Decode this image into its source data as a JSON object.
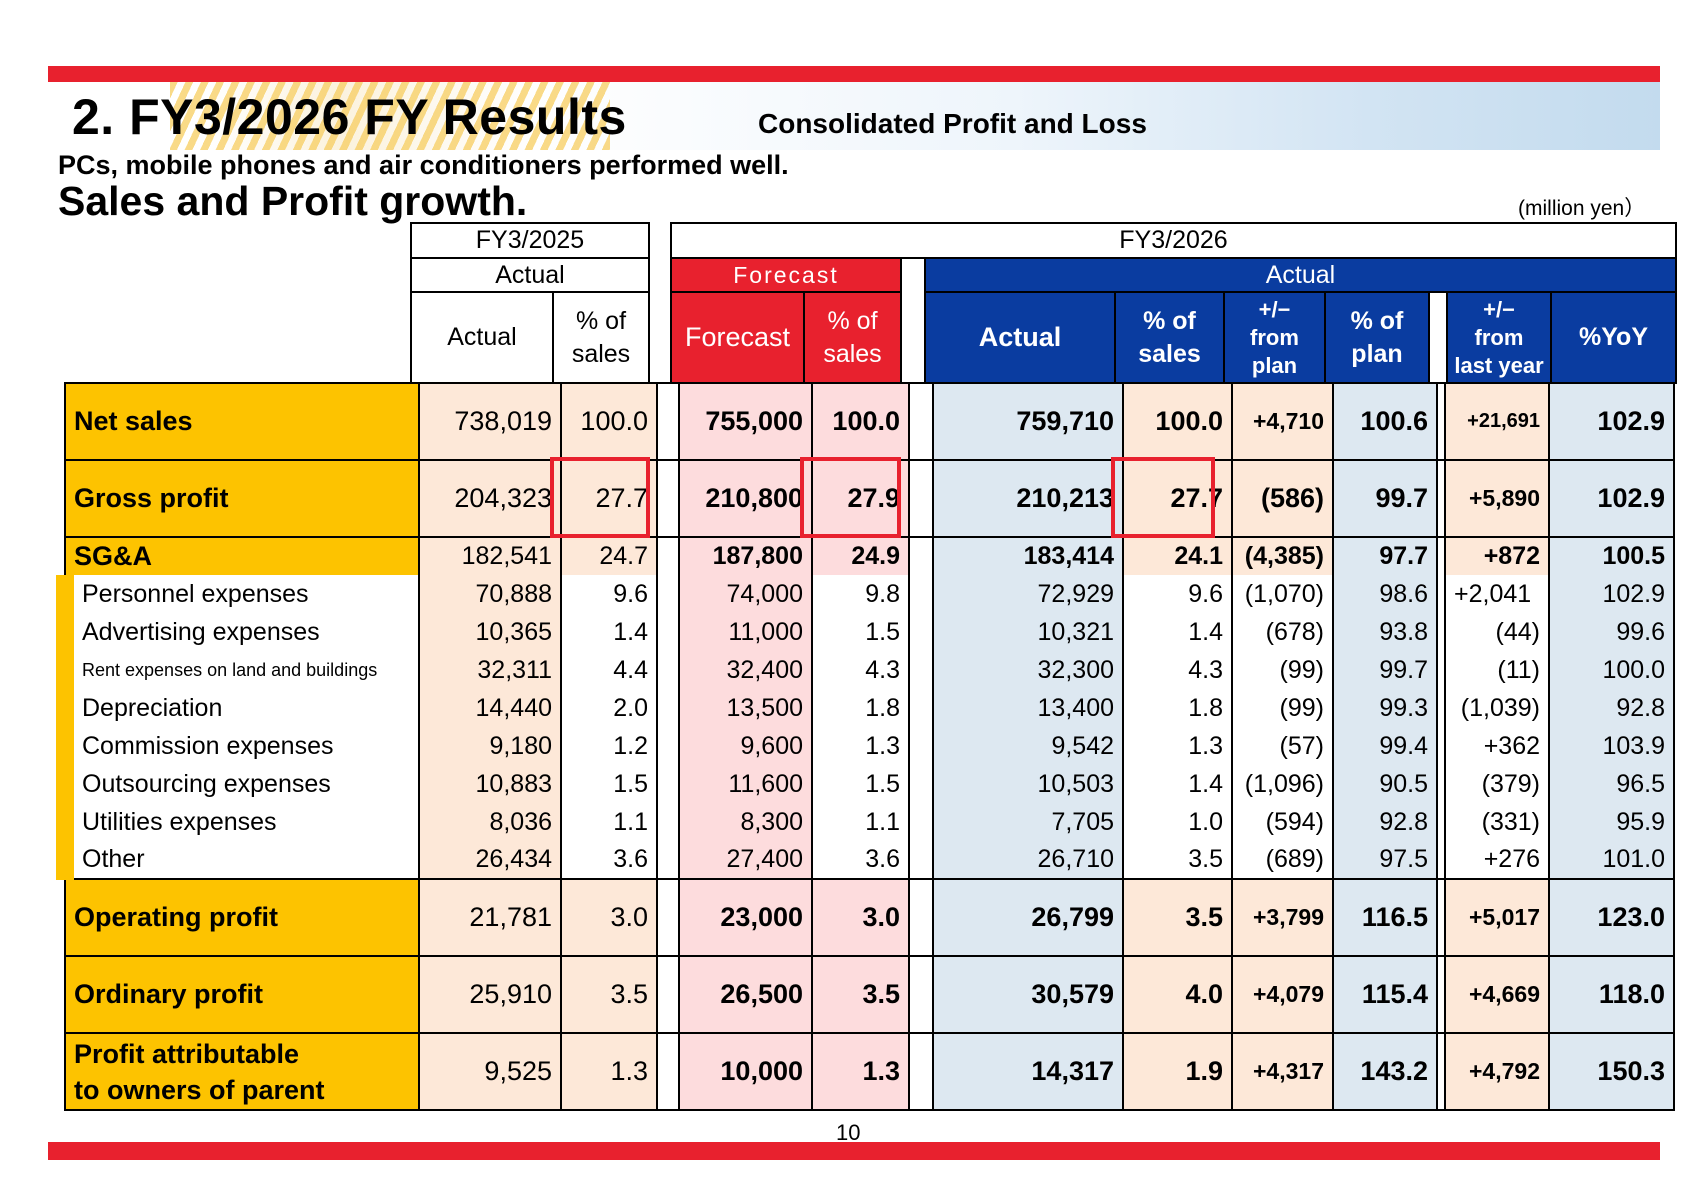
{
  "header": {
    "title": "2. FY3/2026 FY Results",
    "subtitle": "Consolidated Profit and Loss",
    "lead_line1": "PCs, mobile phones and air conditioners performed well.",
    "lead_line2": "Sales and Profit growth.",
    "unit": "(million yen）"
  },
  "colors": {
    "accent_red": "#e8212e",
    "label_yellow": "#fdc300",
    "actual_blue": "#0a3ca0",
    "peach": "#fde8d8",
    "pink": "#fddcdd",
    "light_blue": "#dde8f1"
  },
  "columns": {
    "prev_year": "FY3/2025",
    "prev_actual_group": "Actual",
    "prev_actual": "Actual",
    "prev_pct_l1": "% of",
    "prev_pct_l2": "sales",
    "cur_year": "FY3/2026",
    "forecast_group": "Forecast",
    "forecast": "Forecast",
    "forecast_pct_l1": "% of",
    "forecast_pct_l2": "sales",
    "actual_group": "Actual",
    "actual": "Actual",
    "actual_pct_l1": "% of",
    "actual_pct_l2": "sales",
    "diff_plan_l1": "+/−",
    "diff_plan_l2": "from",
    "diff_plan_l3": "plan",
    "pct_plan_l1": "% of",
    "pct_plan_l2": "plan",
    "diff_ly_l1": "+/−",
    "diff_ly_l2": "from",
    "diff_ly_l3": "last year",
    "yoy": "%YoY"
  },
  "rows": {
    "net_sales": {
      "label": "Net sales",
      "v": [
        "738,019",
        "100.0",
        "755,000",
        "100.0",
        "759,710",
        "100.0",
        "+4,710",
        "100.6",
        "+21,691",
        "102.9"
      ]
    },
    "gross_profit": {
      "label": "Gross profit",
      "v": [
        "204,323",
        "27.7",
        "210,800",
        "27.9",
        "210,213",
        "27.7",
        "(586)",
        "99.7",
        "+5,890",
        "102.9"
      ]
    },
    "sga": {
      "label": "SG&A",
      "v": [
        "182,541",
        "24.7",
        "187,800",
        "24.9",
        "183,414",
        "24.1",
        "(4,385)",
        "97.7",
        "+872",
        "100.5"
      ]
    },
    "personnel": {
      "label": "Personnel expenses",
      "v": [
        "70,888",
        "9.6",
        "74,000",
        "9.8",
        "72,929",
        "9.6",
        "(1,070)",
        "98.6",
        "+2,041",
        "102.9"
      ]
    },
    "advertising": {
      "label": "Advertising expenses",
      "v": [
        "10,365",
        "1.4",
        "11,000",
        "1.5",
        "10,321",
        "1.4",
        "(678)",
        "93.8",
        "(44)",
        "99.6"
      ]
    },
    "rent": {
      "label": "Rent expenses on land and buildings",
      "v": [
        "32,311",
        "4.4",
        "32,400",
        "4.3",
        "32,300",
        "4.3",
        "(99)",
        "99.7",
        "(11)",
        "100.0"
      ]
    },
    "depreciation": {
      "label": "Depreciation",
      "v": [
        "14,440",
        "2.0",
        "13,500",
        "1.8",
        "13,400",
        "1.8",
        "(99)",
        "99.3",
        "(1,039)",
        "92.8"
      ]
    },
    "commission": {
      "label": "Commission expenses",
      "v": [
        "9,180",
        "1.2",
        "9,600",
        "1.3",
        "9,542",
        "1.3",
        "(57)",
        "99.4",
        "+362",
        "103.9"
      ]
    },
    "outsourcing": {
      "label": "Outsourcing expenses",
      "v": [
        "10,883",
        "1.5",
        "11,600",
        "1.5",
        "10,503",
        "1.4",
        "(1,096)",
        "90.5",
        "(379)",
        "96.5"
      ]
    },
    "utilities": {
      "label": "Utilities expenses",
      "v": [
        "8,036",
        "1.1",
        "8,300",
        "1.1",
        "7,705",
        "1.0",
        "(594)",
        "92.8",
        "(331)",
        "95.9"
      ]
    },
    "other": {
      "label": "Other",
      "v": [
        "26,434",
        "3.6",
        "27,400",
        "3.6",
        "26,710",
        "3.5",
        "(689)",
        "97.5",
        "+276",
        "101.0"
      ]
    },
    "operating_profit": {
      "label": "Operating profit",
      "v": [
        "21,781",
        "3.0",
        "23,000",
        "3.0",
        "26,799",
        "3.5",
        "+3,799",
        "116.5",
        "+5,017",
        "123.0"
      ]
    },
    "ordinary_profit": {
      "label": "Ordinary profit",
      "v": [
        "25,910",
        "3.5",
        "26,500",
        "3.5",
        "30,579",
        "4.0",
        "+4,079",
        "115.4",
        "+4,669",
        "118.0"
      ]
    },
    "profit_parent": {
      "label_l1": "Profit attributable",
      "label_l2": "to owners of parent",
      "v": [
        "9,525",
        "1.3",
        "10,000",
        "1.3",
        "14,317",
        "1.9",
        "+4,317",
        "143.2",
        "+4,792",
        "150.3"
      ]
    }
  },
  "page_number": "10"
}
